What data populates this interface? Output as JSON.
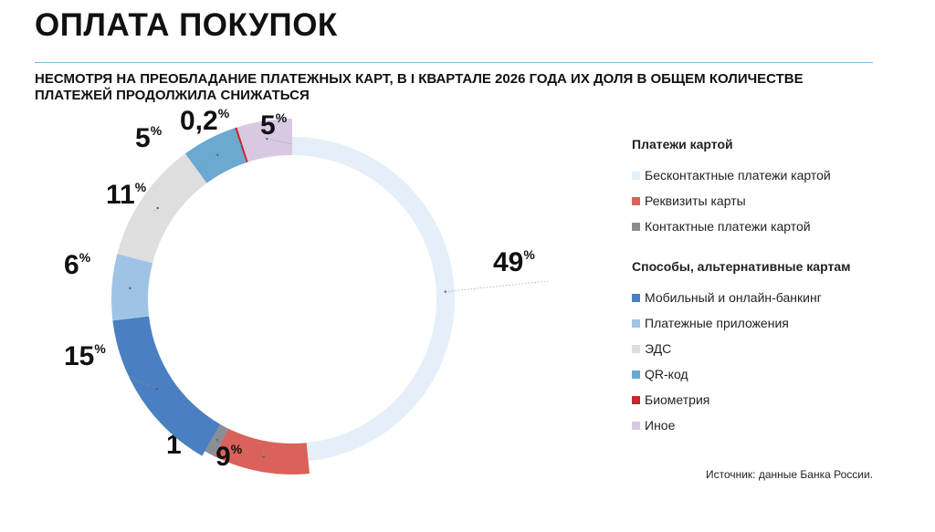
{
  "header": {
    "title": "ОПЛАТА ПОКУПОК",
    "subtitle": "НЕСМОТРЯ НА ПРЕОБЛАДАНИЕ ПЛАТЕЖНЫХ КАРТ, В I КВАРТАЛЕ 2026 ГОДА ИХ ДОЛЯ В ОБЩЕМ КОЛИЧЕСТВЕ ПЛАТЕЖЕЙ ПРОДОЛЖИЛА СНИЖАТЬСЯ"
  },
  "chart_data": {
    "type": "pie",
    "categories": [
      "Бесконтактные платежи картой",
      "Реквизиты карты",
      "Контактные платежи картой",
      "Мобильный и онлайн-банкинг",
      "Платежные приложения",
      "ЭДС",
      "QR-код",
      "Биометрия",
      "Иное"
    ],
    "values": [
      49,
      9,
      1,
      15,
      6,
      11,
      5,
      0.2,
      5
    ],
    "labels": [
      "49",
      "9",
      "1",
      "15",
      "6",
      "11",
      "5",
      "0,2",
      "5"
    ],
    "unit": "%",
    "colors": [
      "#e4eff9",
      "#d9625a",
      "#8a8d92",
      "#4a7fc1",
      "#9fc3e6",
      "#dedede",
      "#6aa9d0",
      "#c8262e",
      "#d8c9e3"
    ],
    "legend_groups": [
      {
        "title": "Платежи картой",
        "items": [
          0,
          1,
          2
        ]
      },
      {
        "title": "Способы, альтернативные картам",
        "items": [
          3,
          4,
          5,
          6,
          7,
          8
        ]
      }
    ]
  },
  "source": "Источник: данные Банка России."
}
